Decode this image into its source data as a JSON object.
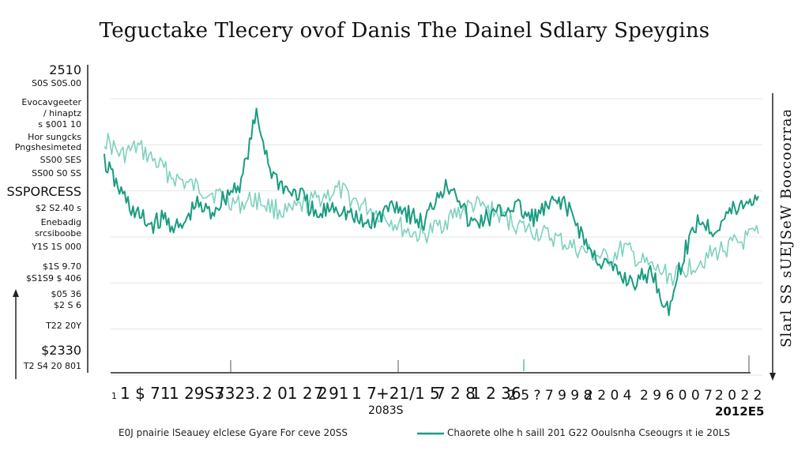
{
  "chart_data": {
    "type": "line",
    "title": "Teguctake Tlecery ovof Danis The Dainel Sdlary Speygins",
    "y_axis_left_labels": [
      "2510",
      "S0S S0S.00",
      "Evocavgeeter",
      "/ hinaptz",
      "s $001 10",
      "Hor sungcks",
      "Pngshesimeted",
      "SS00 SES",
      "SS00 S0 SS",
      "SSPORCESS",
      "$2 S2.40 s",
      "Enebadig",
      "srcsiboobe",
      "Y1S 1S 000",
      "$1S 9.70",
      "$S1S9 $ 406",
      "$05 36",
      "$2 S 6",
      "T22 20Y",
      "$2330",
      "T2 S4 20 801"
    ],
    "y_axis_right_label": "Slarl SS sUEJSeW  Boocoorraa",
    "x_tick_labels": [
      "1",
      "1 $ 71",
      "1 29S3",
      "7323.",
      "2 01 2 2",
      "7 91",
      "1 7",
      "+21/1 5",
      "7 2 8",
      "1 2 36",
      "2 5 ? 7 9 9 8",
      "2 2 0 4",
      "2 9 6 0 0 7",
      "2 0 2 2"
    ],
    "x_sub_labels": [
      "2083S",
      "2012E5"
    ],
    "series": [
      {
        "name": "E0J pnairie lSeauey elclese Gyare For ceve 20SS",
        "color": "#7fd1bf",
        "values": [
          0.78,
          0.72,
          0.75,
          0.7,
          0.65,
          0.62,
          0.6,
          0.58,
          0.55,
          0.57,
          0.54,
          0.52,
          0.55,
          0.58,
          0.6,
          0.56,
          0.53,
          0.5,
          0.46,
          0.44,
          0.48,
          0.52,
          0.55,
          0.53,
          0.5,
          0.47,
          0.45,
          0.43,
          0.4,
          0.38,
          0.36,
          0.4,
          0.35,
          0.32,
          0.3,
          0.34,
          0.37,
          0.4,
          0.42,
          0.45
        ]
      },
      {
        "name": "Chaorete olhe h saill 201 G22 Ooulsnha Cseougrs ıt ie 20LS",
        "color": "#1a9c80",
        "values": [
          0.7,
          0.6,
          0.52,
          0.48,
          0.5,
          0.46,
          0.55,
          0.52,
          0.58,
          0.63,
          0.86,
          0.66,
          0.6,
          0.58,
          0.5,
          0.55,
          0.52,
          0.48,
          0.5,
          0.56,
          0.52,
          0.48,
          0.6,
          0.62,
          0.48,
          0.5,
          0.52,
          0.55,
          0.5,
          0.53,
          0.57,
          0.49,
          0.38,
          0.34,
          0.3,
          0.28,
          0.32,
          0.18,
          0.36,
          0.5,
          0.46,
          0.52,
          0.55,
          0.58
        ]
      }
    ],
    "ylim": [
      0,
      1
    ],
    "grid": true,
    "legend_position": "bottom"
  }
}
